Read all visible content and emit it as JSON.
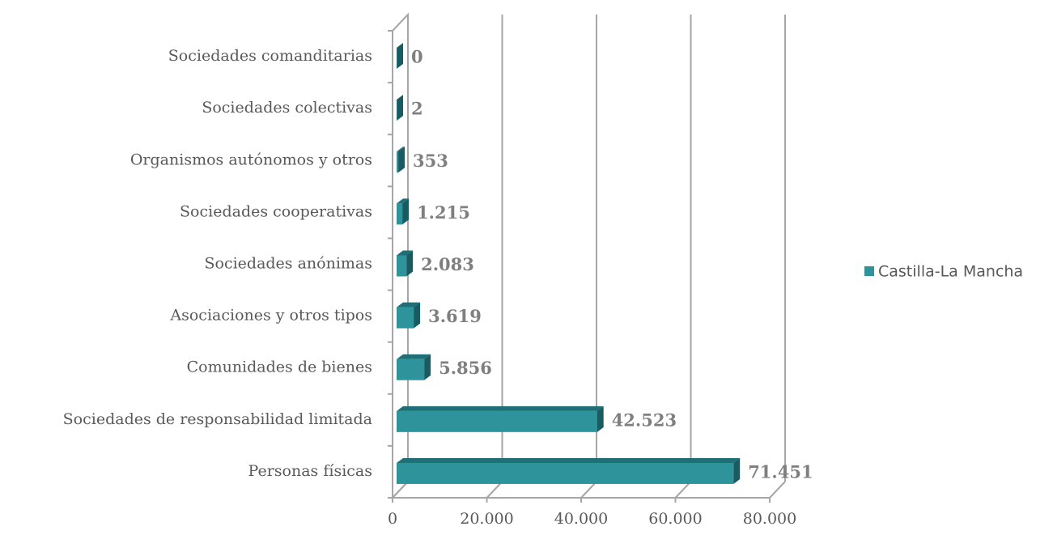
{
  "chart_data": {
    "type": "bar3d",
    "categories": [
      "Sociedades comanditarias",
      "Sociedades colectivas",
      "Organismos autónomos y otros",
      "Sociedades cooperativas",
      "Sociedades anónimas",
      "Asociaciones y otros tipos",
      "Comunidades de bienes",
      "Sociedades de responsabilidad limitada",
      "Personas físicas"
    ],
    "series": [
      {
        "name": "Castilla-La Mancha",
        "color": "#2e939b",
        "values": [
          0,
          2,
          353,
          1215,
          2083,
          3619,
          5856,
          42523,
          71451
        ],
        "value_labels": [
          "0",
          "2",
          "353",
          "1.215",
          "2.083",
          "3.619",
          "5.856",
          "42.523",
          "71.451"
        ]
      }
    ],
    "xlim": [
      0,
      80000
    ],
    "xticks": [
      0,
      {
        "value": 20000,
        "label": "20.000"
      },
      {
        "value": 40000,
        "label": "40.000"
      },
      {
        "value": 60000,
        "label": "60.000"
      },
      {
        "value": 80000,
        "label": "80.000"
      }
    ],
    "grid": true,
    "legend": "right"
  }
}
